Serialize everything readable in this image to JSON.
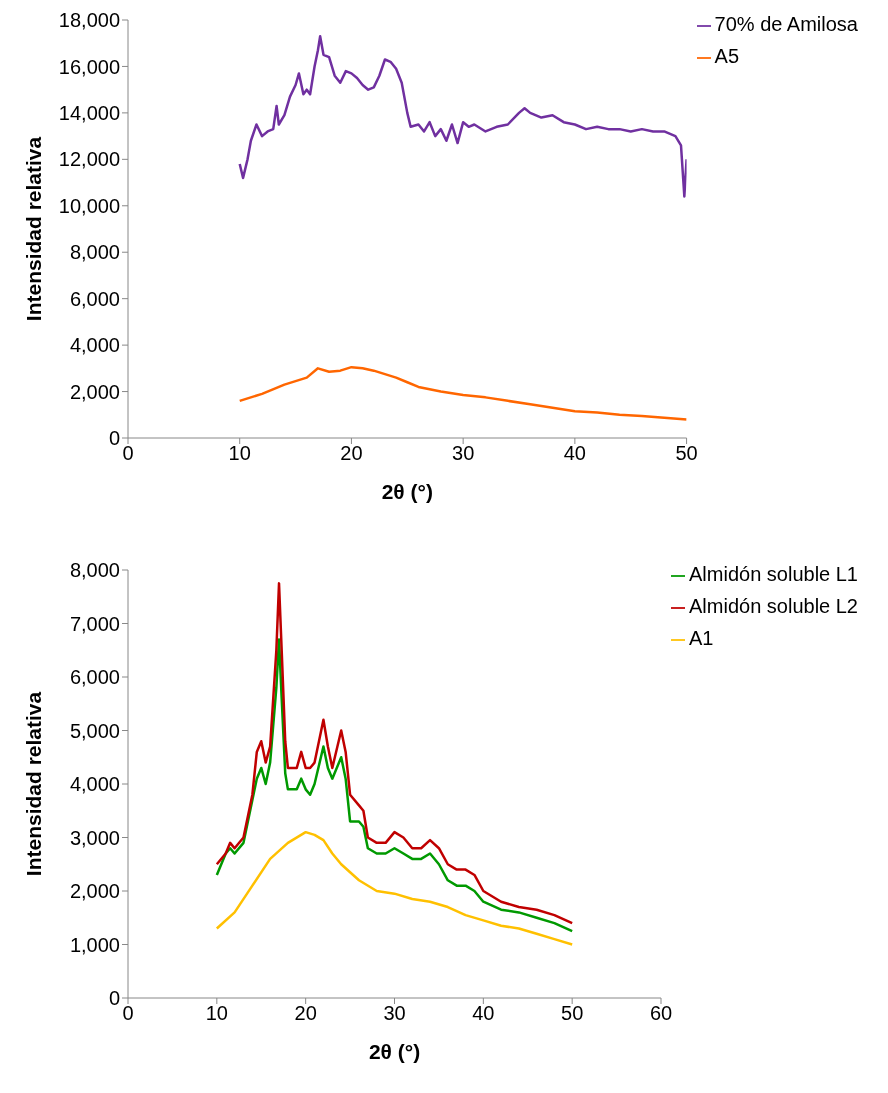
{
  "chart_data": [
    {
      "type": "line",
      "xlabel": "2θ (°)",
      "ylabel": "Intensidad relativa",
      "xlim": [
        0,
        50
      ],
      "xticks": [
        0,
        10,
        20,
        30,
        40,
        50
      ],
      "ylim": [
        0,
        18000
      ],
      "yticks": [
        0,
        {
          "value": 2000,
          "label": "2,000"
        },
        {
          "value": 4000,
          "label": "4,000"
        },
        {
          "value": 6000,
          "label": "6,000"
        },
        {
          "value": 8000,
          "label": "8,000"
        },
        {
          "value": 10000,
          "label": "10,000"
        },
        {
          "value": 12000,
          "label": "12,000"
        },
        {
          "value": 14000,
          "label": "14,000"
        },
        {
          "value": 16000,
          "label": "16,000"
        },
        {
          "value": 18000,
          "label": "18,000"
        }
      ],
      "grid": false,
      "legend": "top right",
      "marker": "none",
      "line_style": "solid",
      "series": [
        {
          "name": "70% de Amilosa",
          "color": "#7030a0",
          "x": [
            10,
            10.3,
            10.7,
            11,
            11.5,
            12,
            12.5,
            13,
            13.3,
            13.5,
            14,
            14.5,
            15,
            15.3,
            15.7,
            16,
            16.3,
            16.7,
            17,
            17.2,
            17.5,
            18,
            18.5,
            19,
            19.5,
            20,
            20.5,
            21,
            21.5,
            22,
            22.5,
            23,
            23.5,
            24,
            24.5,
            25,
            25.3,
            26,
            26.5,
            27,
            27.5,
            28,
            28.5,
            29,
            29.5,
            30,
            30.5,
            31,
            32,
            33,
            34,
            35,
            35.5,
            36,
            37,
            38,
            39,
            40,
            41,
            42,
            43,
            44,
            45,
            46,
            47,
            48,
            49,
            49.5,
            49.8,
            50
          ],
          "values": [
            11800,
            11200,
            12000,
            12800,
            13500,
            13000,
            13200,
            13300,
            14300,
            13500,
            13900,
            14700,
            15200,
            15700,
            14800,
            15000,
            14800,
            16000,
            16700,
            17300,
            16500,
            16400,
            15600,
            15300,
            15800,
            15700,
            15500,
            15200,
            15000,
            15100,
            15600,
            16300,
            16200,
            15900,
            15300,
            14000,
            13400,
            13500,
            13200,
            13600,
            13000,
            13300,
            12800,
            13500,
            12700,
            13600,
            13400,
            13500,
            13200,
            13400,
            13500,
            14000,
            14200,
            14000,
            13800,
            13900,
            13600,
            13500,
            13300,
            13400,
            13300,
            13300,
            13200,
            13300,
            13200,
            13200,
            13000,
            12600,
            10400,
            12000
          ]
        },
        {
          "name": "A5",
          "color": "#ff6600",
          "x": [
            10,
            12,
            14,
            16,
            17,
            18,
            19,
            20,
            21,
            22,
            23,
            24,
            25,
            26,
            28,
            30,
            32,
            34,
            36,
            38,
            40,
            42,
            44,
            46,
            48,
            50
          ],
          "values": [
            1600,
            1900,
            2300,
            2600,
            3000,
            2850,
            2900,
            3050,
            3000,
            2900,
            2750,
            2600,
            2400,
            2200,
            2000,
            1850,
            1750,
            1600,
            1450,
            1300,
            1150,
            1100,
            1000,
            950,
            870,
            800
          ]
        }
      ]
    },
    {
      "type": "line",
      "xlabel": "2θ (°)",
      "ylabel": "Intensidad relativa",
      "xlim": [
        0,
        60
      ],
      "xticks": [
        0,
        10,
        20,
        30,
        40,
        50,
        60
      ],
      "ylim": [
        0,
        8000
      ],
      "yticks": [
        0,
        {
          "value": 1000,
          "label": "1,000"
        },
        {
          "value": 2000,
          "label": "2,000"
        },
        {
          "value": 3000,
          "label": "3,000"
        },
        {
          "value": 4000,
          "label": "4,000"
        },
        {
          "value": 5000,
          "label": "5,000"
        },
        {
          "value": 6000,
          "label": "6,000"
        },
        {
          "value": 7000,
          "label": "7,000"
        },
        {
          "value": 8000,
          "label": "8,000"
        }
      ],
      "grid": false,
      "legend": "top right",
      "marker": "none",
      "line_style": "solid",
      "series": [
        {
          "name": "Almidón soluble L1",
          "color": "#009900",
          "x": [
            10,
            11,
            11.5,
            12,
            13,
            14,
            14.5,
            15,
            15.5,
            16,
            16.7,
            17,
            17.3,
            17.7,
            18,
            19,
            19.5,
            20,
            20.5,
            21,
            22,
            22.5,
            23,
            24,
            24.5,
            25,
            26,
            26.5,
            27,
            28,
            29,
            30,
            31,
            32,
            33,
            34,
            35,
            36,
            37,
            38,
            39,
            40,
            42,
            44,
            46,
            48,
            50
          ],
          "values": [
            2300,
            2700,
            2800,
            2700,
            2900,
            3700,
            4100,
            4300,
            4000,
            4400,
            5800,
            6700,
            5600,
            4200,
            3900,
            3900,
            4100,
            3900,
            3800,
            4000,
            4700,
            4300,
            4100,
            4500,
            4100,
            3300,
            3300,
            3200,
            2800,
            2700,
            2700,
            2800,
            2700,
            2600,
            2600,
            2700,
            2500,
            2200,
            2100,
            2100,
            2000,
            1800,
            1650,
            1600,
            1500,
            1400,
            1250
          ]
        },
        {
          "name": "Almidón soluble L2",
          "color": "#c00000",
          "x": [
            10,
            11,
            11.5,
            12,
            13,
            14,
            14.5,
            15,
            15.5,
            16,
            16.7,
            17,
            17.3,
            17.7,
            18,
            19,
            19.5,
            20,
            20.5,
            21,
            22,
            22.5,
            23,
            24,
            24.5,
            25,
            26,
            26.5,
            27,
            28,
            29,
            30,
            31,
            32,
            33,
            34,
            35,
            36,
            37,
            38,
            39,
            40,
            42,
            44,
            46,
            48,
            50
          ],
          "values": [
            2500,
            2700,
            2900,
            2800,
            3000,
            3800,
            4600,
            4800,
            4400,
            4700,
            6500,
            7750,
            6500,
            4800,
            4300,
            4300,
            4600,
            4300,
            4300,
            4400,
            5200,
            4700,
            4300,
            5000,
            4600,
            3800,
            3600,
            3500,
            3000,
            2900,
            2900,
            3100,
            3000,
            2800,
            2800,
            2950,
            2800,
            2500,
            2400,
            2400,
            2300,
            2000,
            1800,
            1700,
            1650,
            1550,
            1400
          ]
        },
        {
          "name": "A1",
          "color": "#ffc000",
          "x": [
            10,
            12,
            14,
            16,
            18,
            20,
            21,
            22,
            23,
            24,
            26,
            28,
            30,
            32,
            34,
            36,
            38,
            40,
            42,
            44,
            46,
            48,
            50
          ],
          "values": [
            1300,
            1600,
            2100,
            2600,
            2900,
            3100,
            3050,
            2950,
            2700,
            2500,
            2200,
            2000,
            1950,
            1850,
            1800,
            1700,
            1550,
            1450,
            1350,
            1300,
            1200,
            1100,
            1000
          ]
        }
      ]
    }
  ]
}
